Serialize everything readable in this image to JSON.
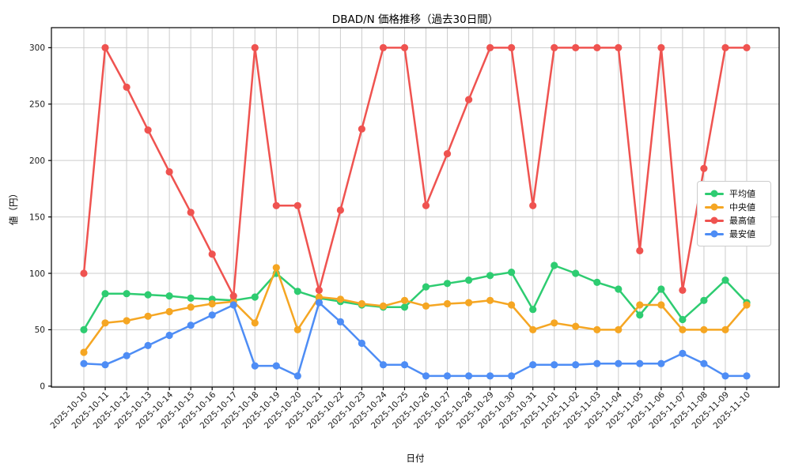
{
  "chart_data": {
    "type": "line",
    "title": "DBAD/N 価格推移（過去30日間）",
    "xlabel": "日付",
    "ylabel": "値（円）",
    "yticks": [
      0,
      50,
      100,
      150,
      200,
      250,
      300
    ],
    "ylim": [
      0,
      300
    ],
    "grid": true,
    "x_tick_rotation": 45,
    "legend_position": "center-right",
    "dates": [
      "2025-10-10",
      "2025-10-11",
      "2025-10-12",
      "2025-10-13",
      "2025-10-14",
      "2025-10-15",
      "2025-10-16",
      "2025-10-17",
      "2025-10-18",
      "2025-10-19",
      "2025-10-20",
      "2025-10-21",
      "2025-10-22",
      "2025-10-23",
      "2025-10-24",
      "2025-10-25",
      "2025-10-26",
      "2025-10-27",
      "2025-10-28",
      "2025-10-29",
      "2025-10-30",
      "2025-10-31",
      "2025-11-01",
      "2025-11-02",
      "2025-11-03",
      "2025-11-04",
      "2025-11-05",
      "2025-11-06",
      "2025-11-07",
      "2025-11-08",
      "2025-11-09",
      "2025-11-10"
    ],
    "series": [
      {
        "name": "平均値",
        "color": "#2ecc71",
        "values": [
          50,
          82,
          82,
          81,
          80,
          78,
          77,
          76,
          79,
          100,
          84,
          78,
          75,
          72,
          70,
          70,
          88,
          91,
          94,
          98,
          101,
          68,
          107,
          100,
          92,
          86,
          63,
          86,
          59,
          76,
          94,
          74
        ]
      },
      {
        "name": "中央値",
        "color": "#f5a623",
        "values": [
          30,
          56,
          58,
          62,
          66,
          70,
          73,
          75,
          56,
          105,
          50,
          79,
          77,
          73,
          71,
          76,
          71,
          73,
          74,
          76,
          72,
          50,
          56,
          53,
          50,
          50,
          72,
          72,
          50,
          50,
          50,
          72
        ]
      },
      {
        "name": "最高値",
        "color": "#ef5350",
        "values": [
          100,
          300,
          265,
          227,
          190,
          154,
          117,
          80,
          300,
          160,
          160,
          85,
          156,
          228,
          300,
          300,
          160,
          206,
          254,
          300,
          300,
          160,
          300,
          300,
          300,
          300,
          120,
          300,
          85,
          193,
          300,
          300
        ]
      },
      {
        "name": "最安値",
        "color": "#4e8df5",
        "values": [
          20,
          19,
          27,
          36,
          45,
          54,
          63,
          72,
          18,
          18,
          9,
          74,
          57,
          38,
          19,
          19,
          9,
          9,
          9,
          9,
          9,
          19,
          19,
          19,
          20,
          20,
          20,
          20,
          29,
          20,
          9,
          9
        ]
      }
    ],
    "style": {
      "grid_color": "#cccccc",
      "spine_color": "#000000",
      "tick_label_color": "#1a1a1a",
      "background": "#ffffff"
    }
  }
}
